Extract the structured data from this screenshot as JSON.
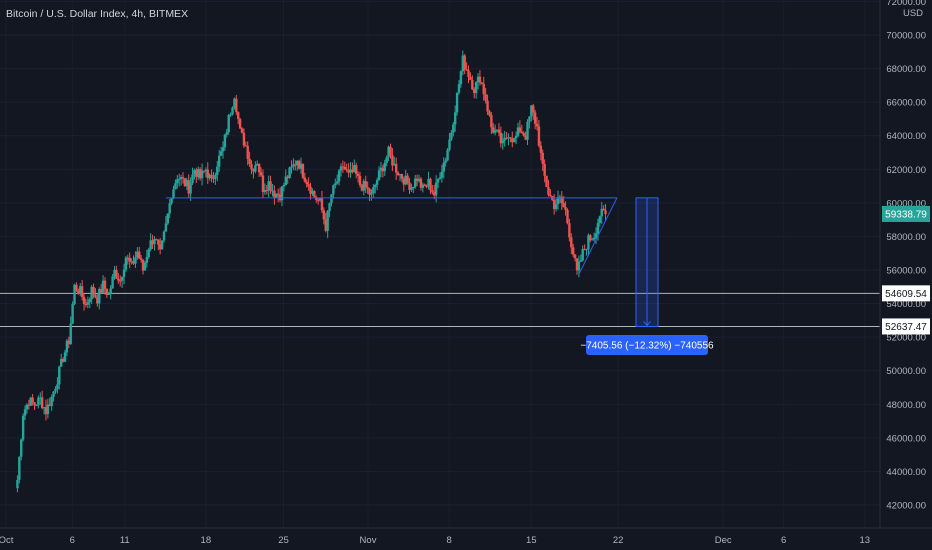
{
  "header": {
    "title": "Bitcoin / U.S. Dollar Index, 4h, BITMEX"
  },
  "colors": {
    "background": "#131722",
    "up": "#26a69a",
    "down": "#ef5350",
    "trendline": "#2962ff",
    "level_line": "#b2b5be",
    "measure": "#2962ff",
    "price_badge_bg": "#26a69a"
  },
  "chart_data": {
    "type": "candlestick",
    "title": "Bitcoin / U.S. Dollar Index, 4h, BITMEX",
    "ylabel": "USD",
    "ylim": [
      41000,
      72500
    ],
    "y_ticks": [
      "42000.00",
      "44000.00",
      "46000.00",
      "48000.00",
      "50000.00",
      "52000.00",
      "54000.00",
      "56000.00",
      "58000.00",
      "60000.00",
      "62000.00",
      "64000.00",
      "66000.00",
      "68000.00",
      "70000.00",
      "72000.00"
    ],
    "x_ticks": [
      "Oct",
      "6",
      "11",
      "18",
      "25",
      "Nov",
      "8",
      "15",
      "22",
      "Dec",
      "6",
      "13"
    ],
    "current_price": "59338.79",
    "levels": [
      {
        "value": 54609.54,
        "label": "54609.54"
      },
      {
        "value": 52637.47,
        "label": "52637.47"
      }
    ],
    "measure": {
      "label": "−7405.56 (−12.32%) −740556"
    },
    "close_path": [
      [
        1.0,
        43500
      ],
      [
        1.5,
        47500
      ],
      [
        2.0,
        48200
      ],
      [
        2.5,
        48000
      ],
      [
        3.0,
        48300
      ],
      [
        3.5,
        47600
      ],
      [
        4.0,
        48400
      ],
      [
        4.5,
        49500
      ],
      [
        5.0,
        50800
      ],
      [
        5.5,
        51800
      ],
      [
        6.0,
        55000
      ],
      [
        6.5,
        54700
      ],
      [
        7.0,
        53900
      ],
      [
        7.5,
        54800
      ],
      [
        8.0,
        54300
      ],
      [
        8.5,
        55100
      ],
      [
        9.0,
        54500
      ],
      [
        9.5,
        55900
      ],
      [
        10.0,
        55400
      ],
      [
        10.5,
        56800
      ],
      [
        11.0,
        56200
      ],
      [
        11.5,
        57100
      ],
      [
        12.0,
        56000
      ],
      [
        12.5,
        57400
      ],
      [
        13.0,
        58000
      ],
      [
        13.5,
        56900
      ],
      [
        14.0,
        58600
      ],
      [
        14.5,
        60600
      ],
      [
        15.0,
        61600
      ],
      [
        15.5,
        61300
      ],
      [
        16.0,
        60900
      ],
      [
        16.5,
        62000
      ],
      [
        17.0,
        61500
      ],
      [
        17.5,
        62000
      ],
      [
        18.0,
        61200
      ],
      [
        18.5,
        62400
      ],
      [
        19.0,
        63200
      ],
      [
        19.5,
        65000
      ],
      [
        20.0,
        66500
      ],
      [
        20.5,
        64200
      ],
      [
        21.0,
        63400
      ],
      [
        21.5,
        62000
      ],
      [
        22.0,
        62500
      ],
      [
        22.5,
        60900
      ],
      [
        23.0,
        61200
      ],
      [
        23.5,
        60600
      ],
      [
        24.0,
        60500
      ],
      [
        24.5,
        61400
      ],
      [
        25.0,
        62000
      ],
      [
        25.5,
        62600
      ],
      [
        26.0,
        61800
      ],
      [
        26.5,
        61100
      ],
      [
        27.0,
        60400
      ],
      [
        27.5,
        60000
      ],
      [
        28.0,
        58600
      ],
      [
        28.5,
        60500
      ],
      [
        29.0,
        61300
      ],
      [
        29.5,
        62200
      ],
      [
        30.0,
        61600
      ],
      [
        30.5,
        61900
      ],
      [
        31.0,
        61100
      ],
      [
        31.5,
        60900
      ],
      [
        32.0,
        60400
      ],
      [
        32.5,
        61400
      ],
      [
        33.0,
        62200
      ],
      [
        33.5,
        63000
      ],
      [
        34.0,
        62200
      ],
      [
        34.5,
        61700
      ],
      [
        35.0,
        61300
      ],
      [
        35.5,
        61000
      ],
      [
        36.0,
        61500
      ],
      [
        36.5,
        60800
      ],
      [
        37.0,
        61200
      ],
      [
        37.5,
        60500
      ],
      [
        38.0,
        61800
      ],
      [
        38.5,
        62700
      ],
      [
        39.0,
        64300
      ],
      [
        39.5,
        66400
      ],
      [
        40.0,
        68500
      ],
      [
        40.5,
        67700
      ],
      [
        41.0,
        66800
      ],
      [
        41.5,
        67500
      ],
      [
        42.0,
        66200
      ],
      [
        42.5,
        64500
      ],
      [
        43.0,
        64100
      ],
      [
        43.5,
        63400
      ],
      [
        44.0,
        64200
      ],
      [
        44.5,
        63700
      ],
      [
        45.0,
        64400
      ],
      [
        45.5,
        64000
      ],
      [
        46.0,
        65600
      ],
      [
        46.5,
        64500
      ],
      [
        47.0,
        62000
      ],
      [
        47.5,
        60600
      ],
      [
        48.0,
        59900
      ],
      [
        48.5,
        60200
      ],
      [
        49.0,
        59500
      ],
      [
        49.5,
        57600
      ],
      [
        50.0,
        55800
      ],
      [
        50.5,
        57000
      ],
      [
        51.0,
        57800
      ],
      [
        51.5,
        58100
      ],
      [
        52.0,
        59300
      ],
      [
        52.5,
        59338
      ]
    ],
    "trendlines": [
      {
        "name": "neckline",
        "points": [
          [
            14.0,
            60300
          ],
          [
            53.5,
            60300
          ]
        ]
      },
      {
        "name": "rising-line",
        "points": [
          [
            50.2,
            55800
          ],
          [
            53.5,
            60300
          ]
        ]
      }
    ]
  }
}
